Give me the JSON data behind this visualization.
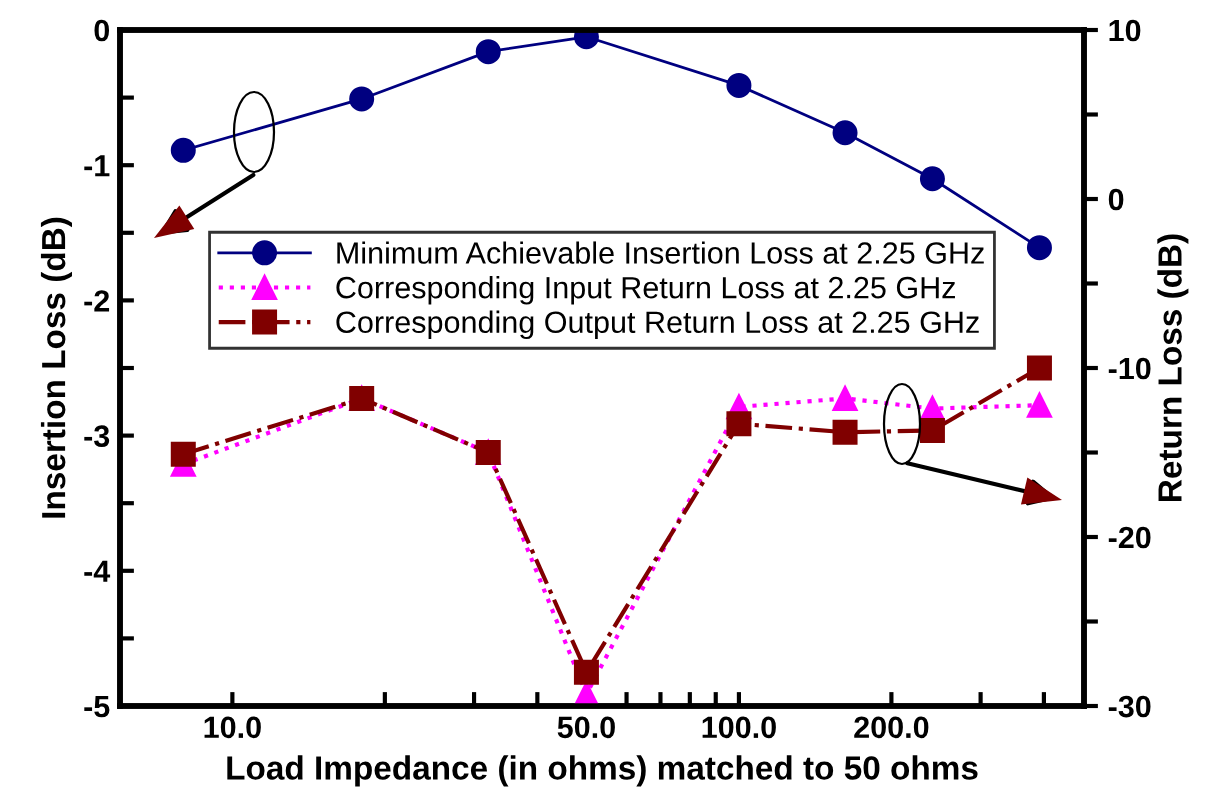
{
  "chart_data": {
    "type": "line",
    "xlabel": "Load Impedance (in ohms) matched to 50 ohms",
    "ylabel": "Insertion Loss (dB)",
    "y2label": "Return Loss (dB)",
    "log": "x",
    "x": [
      8,
      18,
      32,
      50,
      100,
      162,
      241,
      392
    ],
    "xlim": [
      6,
      480
    ],
    "xticks": [
      {
        "value": 10,
        "label": "10.0"
      },
      {
        "value": 20,
        "label": null
      },
      {
        "value": 30,
        "label": null
      },
      {
        "value": 40,
        "label": null
      },
      {
        "value": 50,
        "label": "50.0"
      },
      {
        "value": 60,
        "label": null
      },
      {
        "value": 70,
        "label": null
      },
      {
        "value": 80,
        "label": null
      },
      {
        "value": 90,
        "label": null
      },
      {
        "value": 100,
        "label": "100.0"
      },
      {
        "value": 200,
        "label": "200.0"
      },
      {
        "value": 300,
        "label": null
      },
      {
        "value": 400,
        "label": null
      }
    ],
    "ylim": [
      -5,
      0
    ],
    "yticks": [
      -5,
      {
        "value": -4.5,
        "label": null
      },
      -4,
      {
        "value": -3.5,
        "label": null
      },
      -3,
      {
        "value": -2.5,
        "label": null
      },
      -2,
      {
        "value": -1.5,
        "label": null
      },
      -1,
      {
        "value": -0.5,
        "label": null
      },
      0
    ],
    "y2lim": [
      -30,
      10
    ],
    "y2ticks": [
      -30,
      {
        "value": -25,
        "label": null
      },
      -20,
      {
        "value": -15,
        "label": null
      },
      -10,
      {
        "value": -5,
        "label": null
      },
      0,
      {
        "value": 5,
        "label": null
      },
      10
    ],
    "grid": false,
    "legend": "top",
    "series": [
      {
        "name": "Minimum Achievable Insertion Loss at 2.25 GHz",
        "color": "#000080",
        "marker": "circle",
        "line_style": "solid",
        "values": [
          -0.89,
          -0.51,
          -0.16,
          -0.05,
          -0.41,
          -0.76,
          -1.1,
          -1.61
        ]
      },
      {
        "name": "Corresponding Input Return Loss at 2.25 GHz",
        "color": "#ff00ff",
        "marker": "triangle",
        "line_style": "dotted",
        "axis": "y2",
        "values": [
          -15.7,
          -11.8,
          -15.0,
          -29.3,
          -12.3,
          -11.8,
          -12.4,
          -12.2
        ]
      },
      {
        "name": "Corresponding Output Return Loss at 2.25 GHz",
        "color": "#800000",
        "marker": "square",
        "line_style": "dashdot",
        "axis": "y2",
        "values": [
          -15.1,
          -11.8,
          -15.0,
          -28.0,
          -13.3,
          -13.8,
          -13.7,
          -10.0
        ]
      }
    ]
  }
}
